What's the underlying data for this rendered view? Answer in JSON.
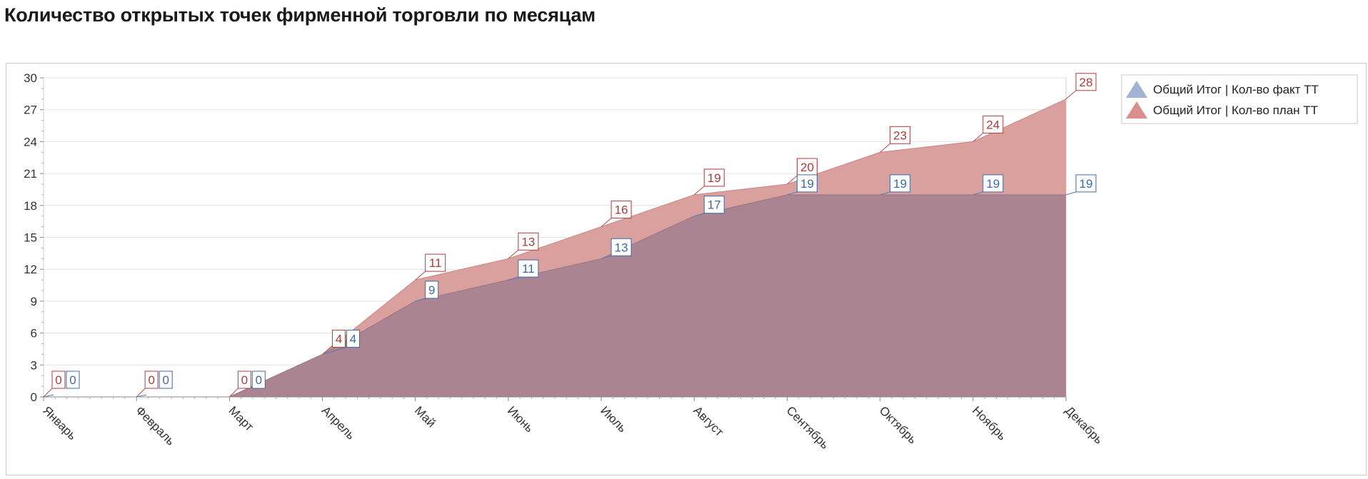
{
  "title": "Количество открытых точек фирменной торговли по месяцам",
  "colors": {
    "plan_fill": "#d9a09e",
    "fact_fill": "#ab8492",
    "plan_line": "#b84a4a",
    "fact_line": "#4f7fb5",
    "plan_label": "#b03a3a",
    "fact_label": "#3c6aa6",
    "grid": "#e2e2e2",
    "axis": "#8a8a8a"
  },
  "chart_data": {
    "type": "area",
    "categories": [
      "Январь",
      "Февраль",
      "Март",
      "Апрель",
      "Май",
      "Июнь",
      "Июль",
      "Август",
      "Сентябрь",
      "Октябрь",
      "Ноябрь",
      "Декабрь"
    ],
    "series": [
      {
        "name": "Общий Итог | Кол-во факт ТТ",
        "values": [
          0,
          0,
          0,
          4,
          9,
          11,
          13,
          17,
          19,
          19,
          19,
          19
        ]
      },
      {
        "name": "Общий Итог | Кол-во план ТТ",
        "values": [
          0,
          0,
          0,
          4,
          11,
          13,
          16,
          19,
          20,
          23,
          24,
          28
        ]
      }
    ],
    "segment_breaks_after": [
      0,
      1
    ],
    "ylim": [
      0,
      30
    ],
    "yticks": [
      0,
      3,
      6,
      9,
      12,
      15,
      18,
      21,
      24,
      27,
      30
    ],
    "grid": true,
    "legend_position": "top-right"
  }
}
